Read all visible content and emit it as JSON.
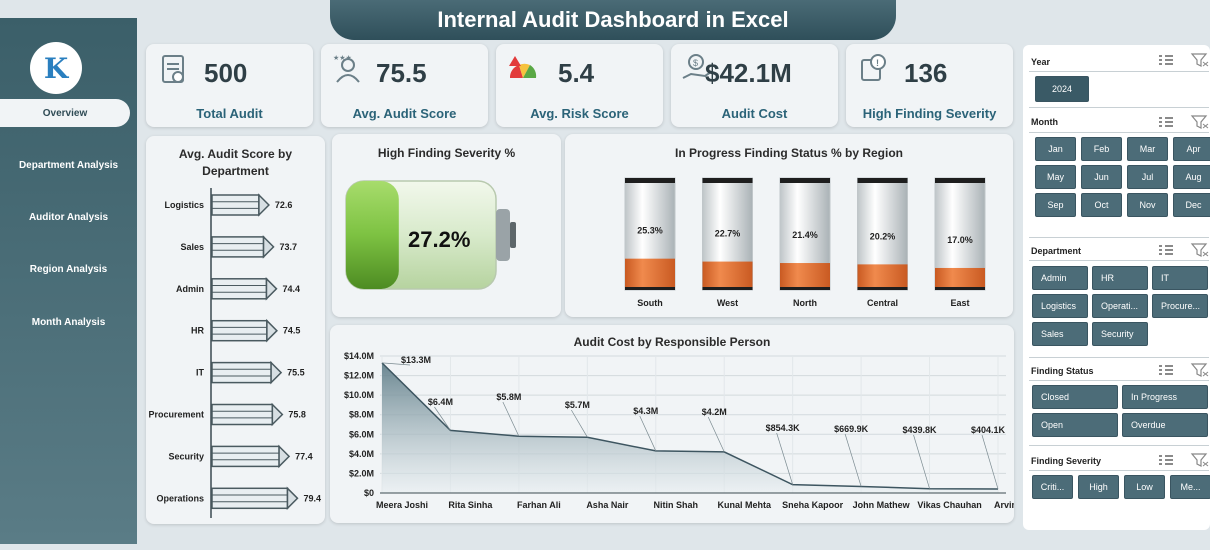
{
  "title": "Internal Audit Dashboard in Excel",
  "nav": [
    "Overview",
    "Department Analysis",
    "Auditor Analysis",
    "Region Analysis",
    "Month Analysis"
  ],
  "kpis": [
    {
      "value": "500",
      "label": "Total Audit",
      "icon": "clipboard-icon"
    },
    {
      "value": "75.5",
      "label": "Avg. Audit Score",
      "icon": "team-icon"
    },
    {
      "value": "5.4",
      "label": "Avg. Risk Score",
      "icon": "gauge-icon"
    },
    {
      "value": "$42.1M",
      "label": "Audit Cost",
      "icon": "money-icon"
    },
    {
      "value": "136",
      "label": "High Finding Severity",
      "icon": "alert-icon"
    }
  ],
  "dept_chart": {
    "title": "Avg. Audit Score by Department",
    "categories": [
      "Logistics",
      "Sales",
      "Admin",
      "HR",
      "IT",
      "Procurement",
      "Security",
      "Operations"
    ],
    "values": [
      72.6,
      73.7,
      74.4,
      74.5,
      75.5,
      75.8,
      77.4,
      79.4
    ]
  },
  "battery": {
    "title": "High Finding Severity %",
    "value": "27.2%",
    "fill": 0.272
  },
  "region_chart": {
    "title": "In Progress Finding Status % by Region",
    "categories": [
      "South",
      "West",
      "North",
      "Central",
      "East"
    ],
    "values": [
      25.3,
      22.7,
      21.4,
      20.2,
      17.0
    ],
    "labels": [
      "25.3%",
      "22.7%",
      "21.4%",
      "20.2%",
      "17.0%"
    ]
  },
  "chart_data": {
    "type": "area",
    "title": "Audit Cost by Responsible Person",
    "categories": [
      "Meera Joshi",
      "Rita Sinha",
      "Farhan Ali",
      "Asha Nair",
      "Nitin Shah",
      "Kunal Mehta",
      "Sneha Kapoor",
      "John Mathew",
      "Vikas Chauhan",
      "Arvind Rao"
    ],
    "values": [
      13.3,
      6.4,
      5.8,
      5.7,
      4.3,
      4.2,
      0.8543,
      0.6699,
      0.4398,
      0.4041
    ],
    "labels": [
      "$13.3M",
      "$6.4M",
      "$5.8M",
      "$5.7M",
      "$4.3M",
      "$4.2M",
      "$854.3K",
      "$669.9K",
      "$439.8K",
      "$404.1K"
    ],
    "yticks": [
      "$14.0M",
      "$12.0M",
      "$10.0M",
      "$8.0M",
      "$6.0M",
      "$4.0M",
      "$2.0M",
      "$0"
    ],
    "ylim": [
      0,
      14
    ],
    "grid": true
  },
  "slicers": {
    "year": {
      "label": "Year",
      "items": [
        "2024"
      ]
    },
    "month": {
      "label": "Month",
      "items": [
        "Jan",
        "Feb",
        "Mar",
        "Apr",
        "May",
        "Jun",
        "Jul",
        "Aug",
        "Sep",
        "Oct",
        "Nov",
        "Dec"
      ]
    },
    "department": {
      "label": "Department",
      "items": [
        "Admin",
        "HR",
        "IT",
        "Logistics",
        "Operati...",
        "Procure...",
        "Sales",
        "Security"
      ]
    },
    "status": {
      "label": "Finding Status",
      "items": [
        "Closed",
        "In Progress",
        "Open",
        "Overdue"
      ]
    },
    "severity": {
      "label": "Finding Severity",
      "items": [
        "Criti...",
        "High",
        "Low",
        "Me..."
      ]
    }
  },
  "colors": {
    "accent": "#e8732f",
    "panel": "#4c6c78",
    "battery": "#7dc242"
  }
}
